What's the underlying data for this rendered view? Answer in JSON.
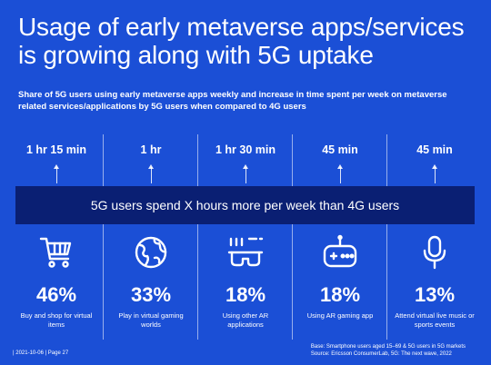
{
  "title": "Usage of early metaverse apps/services is growing along with 5G uptake",
  "subtitle": "Share of 5G users using early metaverse apps weekly and increase in time spent per week on metaverse related services/applications by 5G users when compared to 4G users",
  "banner": "5G users spend X hours more per week than 4G users",
  "footer": {
    "left": "|  2021-10-06  |  Page 27",
    "base": "Base: Smartphone users aged 15–69 & 5G users in 5G markets",
    "source": "Source: Ericsson ConsumerLab, 5G: The next wave, 2022"
  },
  "chart_data": {
    "type": "table",
    "categories": [
      "Buy and shop for virtual items",
      "Play in virtual gaming worlds",
      "Using other AR applications",
      "Using AR gaming app",
      "Attend virtual live music or sports events"
    ],
    "series": [
      {
        "values": [
          46,
          33,
          18,
          18,
          13
        ],
        "labels": [
          "46%",
          "33%",
          "18%",
          "18%",
          "13%"
        ]
      },
      {
        "values": [
          75,
          60,
          90,
          45,
          45
        ],
        "labels": [
          "1 hr 15 min",
          "1 hr",
          "1 hr 30 min",
          "45 min",
          "45 min"
        ]
      }
    ],
    "icons": [
      "cart-icon",
      "globe-icon",
      "ar-glasses-icon",
      "gamepad-icon",
      "microphone-icon"
    ]
  }
}
